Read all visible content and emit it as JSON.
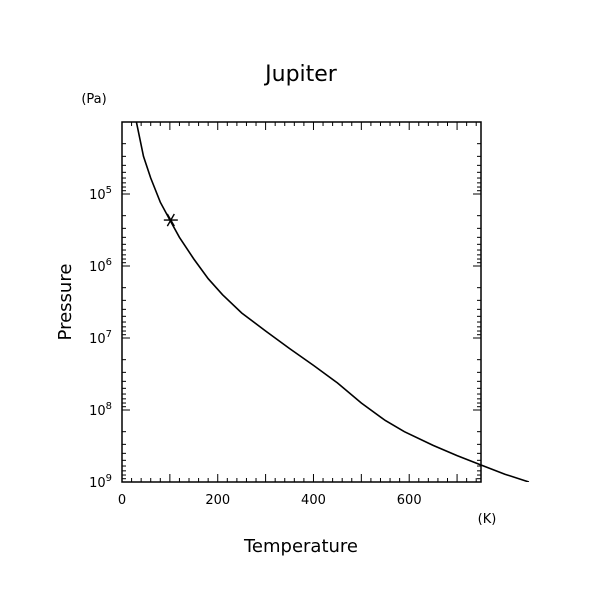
{
  "chart_data": {
    "type": "line",
    "title": "Jupiter",
    "xlabel": "Temperature",
    "ylabel": "Pressure",
    "x_unit": "(K)",
    "y_unit": "(Pa)",
    "xlim": [
      0,
      750
    ],
    "ylim": [
      1000000000,
      10000
    ],
    "yscale": "log",
    "y_inverted": true,
    "x_ticks": [
      {
        "value": 0,
        "label": "0"
      },
      {
        "value": 200,
        "label": "200"
      },
      {
        "value": 400,
        "label": "400"
      },
      {
        "value": 600,
        "label": "600"
      }
    ],
    "y_ticks": [
      {
        "value": 100000,
        "base": "10",
        "exp": "5"
      },
      {
        "value": 1000000,
        "base": "10",
        "exp": "6"
      },
      {
        "value": 10000000,
        "base": "10",
        "exp": "7"
      },
      {
        "value": 100000000,
        "base": "10",
        "exp": "8"
      },
      {
        "value": 1000000000,
        "base": "10",
        "exp": "9"
      }
    ],
    "series": [
      {
        "points": [
          [
            30,
            10000
          ],
          [
            45,
            30000
          ],
          [
            60,
            60000
          ],
          [
            80,
            130000
          ],
          [
            100,
            230000
          ],
          [
            120,
            400000
          ],
          [
            150,
            800000
          ],
          [
            180,
            1500000
          ],
          [
            210,
            2500000
          ],
          [
            250,
            4500000
          ],
          [
            300,
            8000000
          ],
          [
            350,
            14000000
          ],
          [
            400,
            24000000
          ],
          [
            450,
            42000000
          ],
          [
            500,
            80000000
          ],
          [
            550,
            140000000
          ],
          [
            590,
            200000000
          ],
          [
            650,
            310000000
          ],
          [
            700,
            430000000
          ],
          [
            750,
            580000000
          ],
          [
            800,
            780000000
          ],
          [
            850,
            1000000000
          ]
        ]
      }
    ],
    "marker": {
      "x": 102,
      "y": 230000,
      "symbol": "asterisk"
    }
  }
}
